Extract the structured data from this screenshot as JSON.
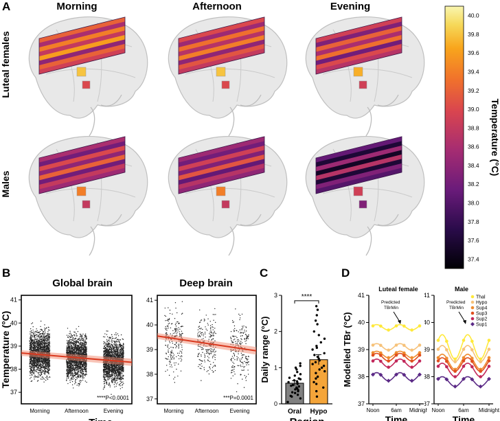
{
  "panels": {
    "a": "A",
    "b": "B",
    "c": "C",
    "d": "D"
  },
  "panelA": {
    "columns": [
      "Morning",
      "Afternoon",
      "Evening"
    ],
    "rows": [
      "Luteal females",
      "Males"
    ],
    "colorbar": {
      "label": "Temperature (°C)",
      "ticks": [
        "40.0",
        "39.8",
        "39.6",
        "39.4",
        "39.2",
        "39.0",
        "38.8",
        "38.6",
        "38.4",
        "38.2",
        "38.0",
        "37.8",
        "37.6",
        "37.4"
      ],
      "range": [
        37.3,
        40.1
      ]
    },
    "cells": [
      {
        "row": 0,
        "col": 0,
        "thal": 39.8,
        "hypo": 39.0,
        "slab": [
          39.2,
          38.6,
          39.4,
          38.8,
          39.6,
          38.4,
          39.2,
          38.9
        ]
      },
      {
        "row": 0,
        "col": 1,
        "thal": 39.8,
        "hypo": 39.0,
        "slab": [
          39.0,
          38.5,
          39.3,
          38.7,
          39.4,
          38.4,
          39.1,
          38.8
        ]
      },
      {
        "row": 0,
        "col": 2,
        "thal": 39.7,
        "hypo": 38.9,
        "slab": [
          38.9,
          38.3,
          39.2,
          38.6,
          39.3,
          38.2,
          39.0,
          38.7
        ]
      },
      {
        "row": 1,
        "col": 0,
        "thal": 39.4,
        "hypo": 38.8,
        "slab": [
          38.6,
          38.2,
          39.0,
          38.4,
          39.2,
          38.2,
          38.8,
          38.5
        ]
      },
      {
        "row": 1,
        "col": 1,
        "thal": 39.4,
        "hypo": 38.8,
        "slab": [
          38.5,
          38.2,
          38.9,
          38.3,
          39.1,
          38.1,
          38.7,
          38.4
        ]
      },
      {
        "row": 1,
        "col": 2,
        "thal": 38.9,
        "hypo": 38.3,
        "slab": [
          38.1,
          37.6,
          38.5,
          37.5,
          38.7,
          37.6,
          38.3,
          38.0
        ]
      }
    ]
  },
  "chart_data": [
    {
      "type": "scatter",
      "title": "Global brain",
      "xlabel": "Time",
      "ylabel": "Temperature (°C)",
      "categories": [
        "Morning",
        "Afternoon",
        "Evening"
      ],
      "ylim": [
        36.5,
        41.2
      ],
      "yticks": [
        37,
        38,
        39,
        40,
        41
      ],
      "trend": {
        "start": 38.7,
        "end": 38.3
      },
      "annotation": "****P<0.0001",
      "spread": {
        "center": [
          38.65,
          38.5,
          38.3
        ],
        "sd": [
          0.45,
          0.45,
          0.45
        ]
      }
    },
    {
      "type": "scatter",
      "title": "Deep brain",
      "xlabel": "",
      "ylabel": "",
      "categories": [
        "Morning",
        "Afternoon",
        "Evening"
      ],
      "ylim": [
        36.8,
        41.2
      ],
      "yticks": [
        37,
        38,
        39,
        40,
        41
      ],
      "trend": {
        "start": 39.55,
        "end": 38.95
      },
      "annotation": "***P=0.0001",
      "spread": {
        "center": [
          39.45,
          39.2,
          39.0
        ],
        "sd": [
          0.6,
          0.6,
          0.6
        ]
      }
    },
    {
      "type": "bar",
      "title": "",
      "xlabel": "Region",
      "ylabel": "Daily range (°C)",
      "categories": [
        "Oral",
        "Hypo"
      ],
      "values": [
        0.57,
        1.22
      ],
      "errors": [
        0.07,
        0.14
      ],
      "ylim": [
        0,
        3
      ],
      "yticks": [
        0,
        1,
        2,
        3
      ],
      "colors": [
        "#808080",
        "#f4a53a"
      ],
      "significance": "****",
      "points": {
        "Oral": [
          0.05,
          0.15,
          0.2,
          0.22,
          0.25,
          0.3,
          0.32,
          0.35,
          0.38,
          0.4,
          0.42,
          0.45,
          0.48,
          0.5,
          0.52,
          0.55,
          0.58,
          0.6,
          0.62,
          0.65,
          0.68,
          0.7,
          0.72,
          0.78,
          0.82,
          0.88,
          0.95,
          1.0,
          1.05,
          1.12
        ],
        "Hypo": [
          0.2,
          0.35,
          0.45,
          0.55,
          0.6,
          0.7,
          0.75,
          0.85,
          0.9,
          0.95,
          1.0,
          1.05,
          1.1,
          1.15,
          1.2,
          1.25,
          1.3,
          1.35,
          1.4,
          1.5,
          1.55,
          1.6,
          1.7,
          1.8,
          1.9,
          2.0,
          2.2,
          2.3,
          2.45,
          2.6,
          2.7
        ]
      }
    },
    {
      "type": "line",
      "title": "Luteal female",
      "xlabel": "Time",
      "ylabel": "Modelled TBr (°C)",
      "xticks": [
        "Noon",
        "6am",
        "Midnight"
      ],
      "ylim": [
        37,
        41
      ],
      "yticks": [
        37,
        38,
        39,
        40,
        41
      ],
      "annotation": "Predicted TBrMin",
      "series": [
        {
          "name": "Thal",
          "color": "#ffe93a",
          "mean": 39.82,
          "amp": 0.1
        },
        {
          "name": "Hypo",
          "color": "#f6c27a",
          "mean": 39.1,
          "amp": 0.12
        },
        {
          "name": "Sup4",
          "color": "#ef8c2f",
          "mean": 38.82,
          "amp": 0.12
        },
        {
          "name": "Sup3",
          "color": "#e04e1e",
          "mean": 38.72,
          "amp": 0.14
        },
        {
          "name": "Sup2",
          "color": "#c2275a",
          "mean": 38.5,
          "amp": 0.15
        },
        {
          "name": "Sup1",
          "color": "#5b2a86",
          "mean": 38.0,
          "amp": 0.15
        }
      ]
    },
    {
      "type": "line",
      "title": "Male",
      "xlabel": "Time",
      "ylabel": "",
      "xticks": [
        "Noon",
        "6am",
        "Midnight"
      ],
      "ylim": [
        37,
        41
      ],
      "yticks": [
        37,
        38,
        39,
        40,
        41
      ],
      "annotation": "Predicted TBrMin",
      "legend": [
        "Thal",
        "Hypo",
        "Sup4",
        "Sup3",
        "Sup2",
        "Sup1"
      ],
      "series": [
        {
          "name": "Thal",
          "color": "#ffe93a",
          "mean": 39.1,
          "amp": 0.45
        },
        {
          "name": "Hypo",
          "color": "#f6c27a",
          "mean": 38.85,
          "amp": 0.3
        },
        {
          "name": "Sup4",
          "color": "#ef8c2f",
          "mean": 38.55,
          "amp": 0.28
        },
        {
          "name": "Sup3",
          "color": "#e04e1e",
          "mean": 38.45,
          "amp": 0.25
        },
        {
          "name": "Sup2",
          "color": "#c2275a",
          "mean": 38.25,
          "amp": 0.25
        },
        {
          "name": "Sup1",
          "color": "#5b2a86",
          "mean": 37.82,
          "amp": 0.18
        }
      ]
    }
  ]
}
